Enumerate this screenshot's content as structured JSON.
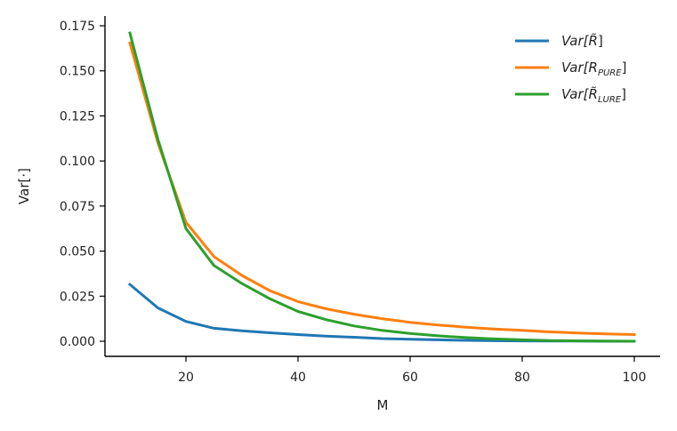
{
  "chart_data": {
    "type": "line",
    "title": "",
    "xlabel": "M",
    "ylabel": "Var[·]",
    "xlim": [
      5,
      105
    ],
    "ylim": [
      -0.008,
      0.18
    ],
    "xticks": [
      20,
      40,
      60,
      80,
      100
    ],
    "xtick_labels": [
      "20",
      "40",
      "60",
      "80",
      "100"
    ],
    "yticks": [
      0.0,
      0.025,
      0.05,
      0.075,
      0.1,
      0.125,
      0.15,
      0.175
    ],
    "ytick_labels": [
      "0.000",
      "0.025",
      "0.050",
      "0.075",
      "0.100",
      "0.125",
      "0.150",
      "0.175"
    ],
    "grid": false,
    "legend_position": "top-right",
    "x": [
      10,
      15,
      20,
      25,
      30,
      35,
      40,
      45,
      50,
      55,
      60,
      65,
      70,
      75,
      80,
      85,
      90,
      95,
      100
    ],
    "series": [
      {
        "name": "Var[R̃]",
        "base": "Var[R̃",
        "sub": "",
        "color": "#1f77b4",
        "values": [
          0.0315,
          0.0185,
          0.011,
          0.0072,
          0.0058,
          0.0047,
          0.0037,
          0.0028,
          0.0022,
          0.0015,
          0.0011,
          0.0008,
          0.0005,
          0.0003,
          0.0002,
          0.0001,
          0.0001,
          0.0,
          0.0
        ]
      },
      {
        "name": "Var[R_PURE]",
        "base": "Var[R",
        "sub": "PURE",
        "color": "#ff7f0e",
        "values": [
          0.1655,
          0.11,
          0.066,
          0.047,
          0.0365,
          0.028,
          0.022,
          0.018,
          0.015,
          0.0125,
          0.0105,
          0.009,
          0.0078,
          0.0068,
          0.006,
          0.0052,
          0.0046,
          0.0041,
          0.0037
        ]
      },
      {
        "name": "Var[R̃_LURE]",
        "base": "Var[R̃",
        "sub": "LURE",
        "color": "#2ca02c",
        "values": [
          0.171,
          0.112,
          0.0625,
          0.042,
          0.032,
          0.0235,
          0.0165,
          0.012,
          0.0085,
          0.006,
          0.0043,
          0.003,
          0.002,
          0.0013,
          0.0008,
          0.0004,
          0.0002,
          0.0001,
          0.0
        ]
      }
    ]
  }
}
